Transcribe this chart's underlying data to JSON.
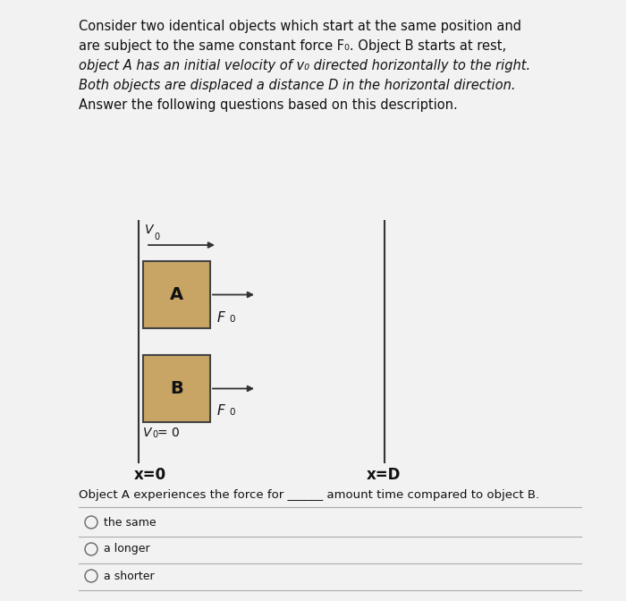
{
  "bg_color": "#dcdcdc",
  "content_bg": "#f0f0f0",
  "title_lines": [
    "Consider two identical objects which start at the same position and",
    "are subject to the same constant force F₀. Object B starts at rest,",
    "object A has an initial velocity of v₀ directed horizontally to the right.",
    "Both objects are displaced a distance D in the horizontal direction.",
    "Answer the following questions based on this description."
  ],
  "box_color": "#c8a565",
  "box_edge_color": "#444444",
  "box_A_label": "A",
  "box_B_label": "B",
  "question_text": "Object A experiences the force for ______ amount time compared to object B.",
  "option1": "the same",
  "option2": "a longer",
  "option3": "a shorter",
  "label_x0": "x=0",
  "label_xD": "x=D"
}
